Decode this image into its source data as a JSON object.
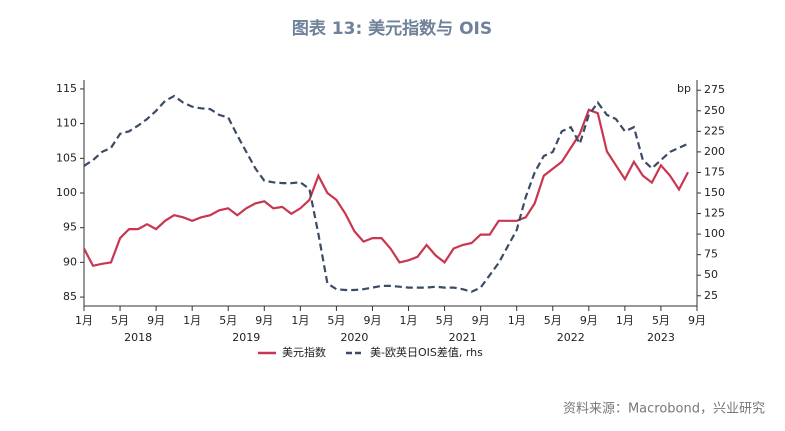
{
  "chart_data": {
    "type": "line",
    "title": "图表 13: 美元指数与 OIS",
    "y2_label": "bp",
    "source": "资料来源：Macrobond，兴业研究",
    "x": [
      "2018-01",
      "2018-02",
      "2018-03",
      "2018-04",
      "2018-05",
      "2018-06",
      "2018-07",
      "2018-08",
      "2018-09",
      "2018-10",
      "2018-11",
      "2018-12",
      "2019-01",
      "2019-02",
      "2019-03",
      "2019-04",
      "2019-05",
      "2019-06",
      "2019-07",
      "2019-08",
      "2019-09",
      "2019-10",
      "2019-11",
      "2019-12",
      "2020-01",
      "2020-02",
      "2020-03",
      "2020-04",
      "2020-05",
      "2020-06",
      "2020-07",
      "2020-08",
      "2020-09",
      "2020-10",
      "2020-11",
      "2020-12",
      "2021-01",
      "2021-02",
      "2021-03",
      "2021-04",
      "2021-05",
      "2021-06",
      "2021-07",
      "2021-08",
      "2021-09",
      "2021-10",
      "2021-11",
      "2021-12",
      "2022-01",
      "2022-02",
      "2022-03",
      "2022-04",
      "2022-05",
      "2022-06",
      "2022-07",
      "2022-08",
      "2022-09",
      "2022-10",
      "2022-11",
      "2022-12",
      "2023-01",
      "2023-02",
      "2023-03",
      "2023-04",
      "2023-05",
      "2023-06",
      "2023-07",
      "2023-08"
    ],
    "series": [
      {
        "name": "美元指数",
        "color": "#c8364f",
        "dash": false,
        "values": [
          92,
          89.5,
          89.8,
          90,
          93.5,
          94.8,
          94.8,
          95.5,
          94.8,
          96,
          96.8,
          96.5,
          96,
          96.5,
          96.8,
          97.5,
          97.8,
          96.8,
          97.8,
          98.5,
          98.8,
          97.8,
          98,
          97,
          97.8,
          99,
          102.5,
          100,
          99,
          97,
          94.5,
          93,
          93.5,
          93.5,
          92,
          90,
          90.3,
          90.8,
          92.5,
          91,
          90,
          92,
          92.5,
          92.8,
          94,
          94,
          96,
          96,
          96,
          96.5,
          98.5,
          102.5,
          103.5,
          104.5,
          106.5,
          108.5,
          112,
          111.5,
          106,
          104,
          102,
          104.5,
          102.5,
          101.5,
          104,
          102.5,
          100.5,
          103
        ]
      },
      {
        "name": "美-欧英日OIS差值, rhs",
        "color": "#3b4a66",
        "dash": true,
        "axis": "y2",
        "values": [
          183,
          190,
          200,
          205,
          222,
          225,
          232,
          240,
          250,
          262,
          268,
          260,
          255,
          253,
          252,
          245,
          242,
          220,
          200,
          180,
          165,
          163,
          162,
          162,
          163,
          155,
          100,
          40,
          33,
          32,
          32,
          33,
          35,
          37,
          37,
          36,
          35,
          35,
          35,
          36,
          35,
          35,
          33,
          30,
          35,
          50,
          65,
          85,
          105,
          145,
          175,
          195,
          200,
          225,
          230,
          210,
          245,
          260,
          245,
          240,
          225,
          230,
          190,
          180,
          190,
          200,
          205,
          210
        ]
      }
    ],
    "xlim": [
      "2018-01",
      "2023-09"
    ],
    "xticks": [
      {
        "value": "2018-01",
        "label": "1月"
      },
      {
        "value": "2018-05",
        "label": "5月"
      },
      {
        "value": "2018-09",
        "label": "9月"
      },
      {
        "value": "2019-01",
        "label": "1月"
      },
      {
        "value": "2019-05",
        "label": "5月"
      },
      {
        "value": "2019-09",
        "label": "9月"
      },
      {
        "value": "2020-01",
        "label": "1月"
      },
      {
        "value": "2020-05",
        "label": "5月"
      },
      {
        "value": "2020-09",
        "label": "9月"
      },
      {
        "value": "2021-01",
        "label": "1月"
      },
      {
        "value": "2021-05",
        "label": "5月"
      },
      {
        "value": "2021-09",
        "label": "9月"
      },
      {
        "value": "2022-01",
        "label": "1月"
      },
      {
        "value": "2022-05",
        "label": "5月"
      },
      {
        "value": "2022-09",
        "label": "9月"
      },
      {
        "value": "2023-01",
        "label": "1月"
      },
      {
        "value": "2023-05",
        "label": "5月"
      },
      {
        "value": "2023-09",
        "label": "9月"
      }
    ],
    "years": [
      {
        "value": "2018-07",
        "label": "2018"
      },
      {
        "value": "2019-07",
        "label": "2019"
      },
      {
        "value": "2020-07",
        "label": "2020"
      },
      {
        "value": "2021-07",
        "label": "2021"
      },
      {
        "value": "2022-07",
        "label": "2022"
      },
      {
        "value": "2023-05",
        "label": "2023"
      }
    ],
    "ylim": [
      84,
      116
    ],
    "yticks": [
      85,
      90,
      95,
      100,
      105,
      110,
      115
    ],
    "y2lim": [
      15,
      285
    ],
    "y2ticks": [
      25,
      50,
      75,
      100,
      125,
      150,
      175,
      200,
      225,
      250,
      275
    ],
    "grid": false
  }
}
